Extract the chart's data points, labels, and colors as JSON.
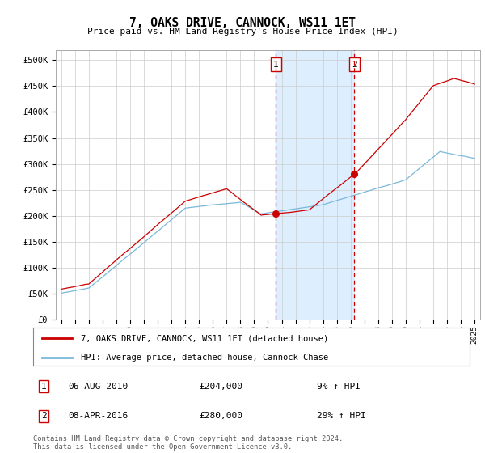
{
  "title": "7, OAKS DRIVE, CANNOCK, WS11 1ET",
  "subtitle": "Price paid vs. HM Land Registry's House Price Index (HPI)",
  "yticks": [
    0,
    50000,
    100000,
    150000,
    200000,
    250000,
    300000,
    350000,
    400000,
    450000,
    500000
  ],
  "ytick_labels": [
    "£0",
    "£50K",
    "£100K",
    "£150K",
    "£200K",
    "£250K",
    "£300K",
    "£350K",
    "£400K",
    "£450K",
    "£500K"
  ],
  "xticks": [
    1995,
    1996,
    1997,
    1998,
    1999,
    2000,
    2001,
    2002,
    2003,
    2004,
    2005,
    2006,
    2007,
    2008,
    2009,
    2010,
    2011,
    2012,
    2013,
    2014,
    2015,
    2016,
    2017,
    2018,
    2019,
    2020,
    2021,
    2022,
    2023,
    2024,
    2025
  ],
  "hpi_color": "#7ab8d9",
  "price_color": "#cc0000",
  "sale1_date": 2010.58,
  "sale1_price": 204000,
  "sale2_date": 2016.27,
  "sale2_price": 280000,
  "legend_line1": "7, OAKS DRIVE, CANNOCK, WS11 1ET (detached house)",
  "legend_line2": "HPI: Average price, detached house, Cannock Chase",
  "footer": "Contains HM Land Registry data © Crown copyright and database right 2024.\nThis data is licensed under the Open Government Licence v3.0.",
  "background_color": "#ffffff",
  "shade_color": "#ddeeff",
  "grid_color": "#cccccc",
  "dashed_line_color": "#cc0000",
  "table_row1": [
    "1",
    "06-AUG-2010",
    "£204,000",
    "9% ↑ HPI"
  ],
  "table_row2": [
    "2",
    "08-APR-2016",
    "£280,000",
    "29% ↑ HPI"
  ]
}
